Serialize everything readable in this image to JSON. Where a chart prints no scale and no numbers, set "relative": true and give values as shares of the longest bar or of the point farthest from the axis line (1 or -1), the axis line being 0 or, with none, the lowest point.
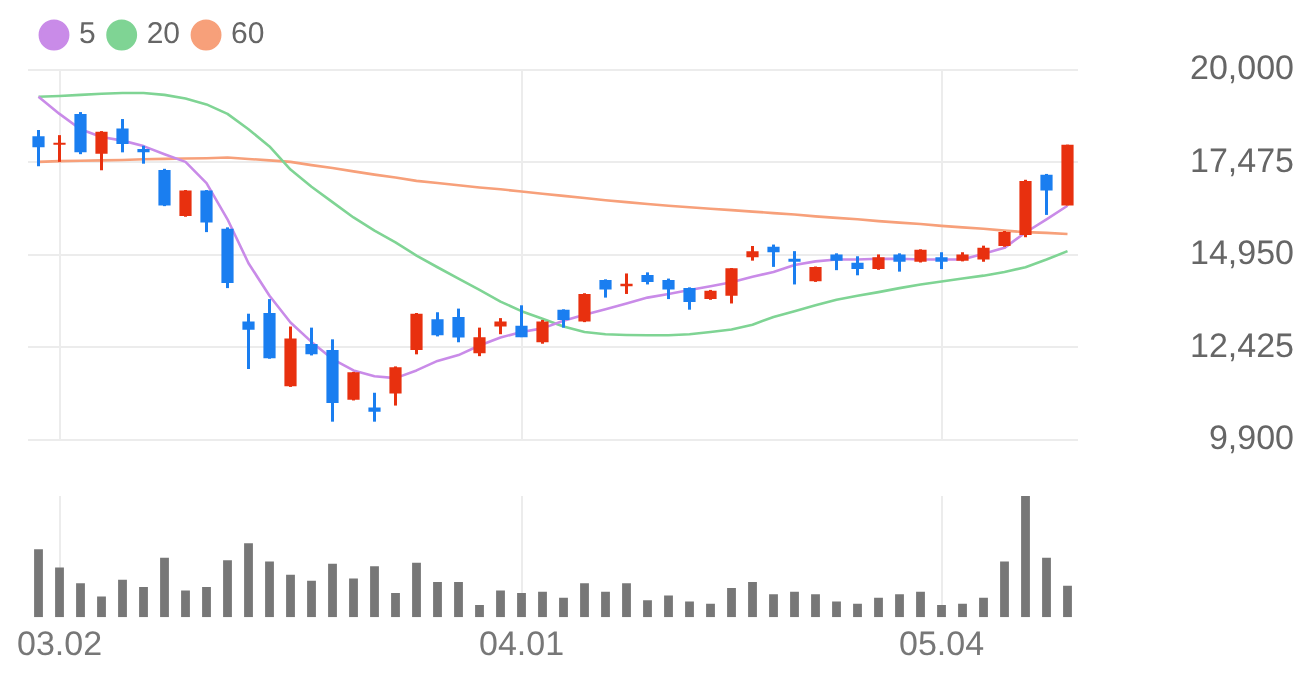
{
  "chart_data": [
    {
      "type": "candlestick",
      "categories": [
        null,
        "03.02",
        null,
        null,
        null,
        null,
        null,
        null,
        null,
        null,
        null,
        null,
        null,
        null,
        null,
        null,
        null,
        null,
        null,
        null,
        null,
        null,
        null,
        "04.01",
        null,
        null,
        null,
        null,
        null,
        null,
        null,
        null,
        null,
        null,
        null,
        null,
        null,
        null,
        null,
        null,
        null,
        null,
        null,
        "05.04",
        null,
        null,
        null,
        null,
        null,
        null
      ],
      "ohlc": [
        [
          18190,
          18360,
          17370,
          17890
        ],
        [
          17960,
          18220,
          17490,
          18010
        ],
        [
          18800,
          18850,
          17700,
          17750
        ],
        [
          17710,
          18330,
          17260,
          18310
        ],
        [
          18400,
          18660,
          17750,
          17980
        ],
        [
          17840,
          17930,
          17440,
          17750
        ],
        [
          17270,
          17300,
          16280,
          16300
        ],
        [
          16010,
          16720,
          15990,
          16710
        ],
        [
          16710,
          16720,
          15570,
          15830
        ],
        [
          15660,
          15700,
          14040,
          14180
        ],
        [
          13130,
          13340,
          11830,
          12900
        ],
        [
          13360,
          13740,
          12110,
          12120
        ],
        [
          11360,
          12990,
          11340,
          12660
        ],
        [
          12510,
          12960,
          12200,
          12230
        ],
        [
          12350,
          12640,
          10390,
          10900
        ],
        [
          10990,
          11750,
          10970,
          11740
        ],
        [
          10780,
          11180,
          10390,
          10660
        ],
        [
          11160,
          11900,
          10830,
          11880
        ],
        [
          12350,
          13360,
          12230,
          13340
        ],
        [
          13190,
          13380,
          12720,
          12750
        ],
        [
          13250,
          13480,
          12560,
          12690
        ],
        [
          12260,
          12960,
          12180,
          12700
        ],
        [
          12990,
          13220,
          12780,
          13130
        ],
        [
          13010,
          13570,
          12700,
          12700
        ],
        [
          12560,
          13170,
          12520,
          13130
        ],
        [
          13450,
          13460,
          12960,
          13170
        ],
        [
          13130,
          13900,
          13110,
          13880
        ],
        [
          14260,
          14280,
          13780,
          14000
        ],
        [
          14090,
          14440,
          13880,
          14160
        ],
        [
          14400,
          14470,
          14140,
          14210
        ],
        [
          14260,
          14300,
          13740,
          14000
        ],
        [
          14040,
          14060,
          13450,
          13660
        ],
        [
          13740,
          13990,
          13720,
          13970
        ],
        [
          13830,
          14590,
          13620,
          14580
        ],
        [
          14880,
          15190,
          14790,
          15050
        ],
        [
          15170,
          15230,
          14620,
          15020
        ],
        [
          14840,
          15050,
          14140,
          14760
        ],
        [
          14230,
          14630,
          14210,
          14620
        ],
        [
          14960,
          14990,
          14530,
          14790
        ],
        [
          14730,
          14910,
          14390,
          14560
        ],
        [
          14560,
          14960,
          14540,
          14880
        ],
        [
          14960,
          14990,
          14490,
          14760
        ],
        [
          14760,
          15100,
          14740,
          15090
        ],
        [
          14880,
          15020,
          14560,
          14760
        ],
        [
          14790,
          15020,
          14770,
          14960
        ],
        [
          14820,
          15200,
          14760,
          15140
        ],
        [
          15190,
          15600,
          15170,
          15570
        ],
        [
          15490,
          17000,
          15430,
          16970
        ],
        [
          17140,
          17160,
          16040,
          16710
        ],
        [
          16300,
          17960,
          16300,
          17960
        ]
      ],
      "colors": [
        "#1a7ef0",
        "#e8300f",
        "#1a7ef0",
        "#e8300f",
        "#1a7ef0",
        "#1a7ef0",
        "#1a7ef0",
        "#e8300f",
        "#1a7ef0",
        "#1a7ef0",
        "#1a7ef0",
        "#1a7ef0",
        "#e8300f",
        "#1a7ef0",
        "#1a7ef0",
        "#e8300f",
        "#1a7ef0",
        "#e8300f",
        "#e8300f",
        "#1a7ef0",
        "#1a7ef0",
        "#e8300f",
        "#e8300f",
        "#1a7ef0",
        "#e8300f",
        "#1a7ef0",
        "#e8300f",
        "#1a7ef0",
        "#e8300f",
        "#1a7ef0",
        "#1a7ef0",
        "#1a7ef0",
        "#e8300f",
        "#e8300f",
        "#e8300f",
        "#1a7ef0",
        "#1a7ef0",
        "#e8300f",
        "#1a7ef0",
        "#1a7ef0",
        "#e8300f",
        "#1a7ef0",
        "#e8300f",
        "#1a7ef0",
        "#e8300f",
        "#e8300f",
        "#e8300f",
        "#e8300f",
        "#1a7ef0",
        "#e8300f"
      ],
      "series": [
        {
          "type": "line",
          "name": "5",
          "color": "#c98be8",
          "values": [
            19270,
            18800,
            18380,
            18170,
            18070,
            17920,
            17700,
            17490,
            16910,
            15920,
            14720,
            13830,
            13100,
            12570,
            12100,
            11790,
            11630,
            11580,
            11790,
            12050,
            12210,
            12470,
            12690,
            12840,
            12940,
            13150,
            13310,
            13460,
            13620,
            13780,
            13880,
            13990,
            14090,
            14200,
            14350,
            14480,
            14670,
            14770,
            14820,
            14820,
            14840,
            14840,
            14820,
            14820,
            14820,
            14980,
            15140,
            15560,
            15920,
            16290
          ]
        },
        {
          "type": "line",
          "name": "20",
          "color": "#7fd494",
          "values": [
            19270,
            19290,
            19320,
            19350,
            19370,
            19370,
            19320,
            19220,
            19060,
            18800,
            18380,
            17910,
            17280,
            16810,
            16390,
            15970,
            15610,
            15290,
            14930,
            14610,
            14300,
            13990,
            13670,
            13410,
            13200,
            12990,
            12840,
            12780,
            12760,
            12750,
            12750,
            12780,
            12840,
            12910,
            13040,
            13250,
            13410,
            13570,
            13720,
            13830,
            13930,
            14040,
            14140,
            14220,
            14300,
            14380,
            14480,
            14610,
            14820,
            15050
          ]
        },
        {
          "type": "line",
          "name": "60",
          "color": "#f7a07a",
          "values": [
            17490,
            17510,
            17520,
            17530,
            17540,
            17560,
            17570,
            17580,
            17590,
            17610,
            17570,
            17530,
            17490,
            17400,
            17320,
            17230,
            17140,
            17060,
            16970,
            16910,
            16850,
            16790,
            16740,
            16680,
            16620,
            16560,
            16500,
            16440,
            16390,
            16340,
            16290,
            16250,
            16210,
            16170,
            16130,
            16090,
            16050,
            16000,
            15960,
            15920,
            15870,
            15830,
            15790,
            15740,
            15700,
            15660,
            15610,
            15570,
            15550,
            15520
          ]
        }
      ],
      "ylim": [
        9900,
        20000
      ],
      "yticks": [
        {
          "value": 9900,
          "label": "9,900"
        },
        {
          "value": 12425,
          "label": "12,425"
        },
        {
          "value": 14950,
          "label": "14,950"
        },
        {
          "value": 17475,
          "label": "17,475"
        },
        {
          "value": 20000,
          "label": "20,000"
        }
      ],
      "grid": true,
      "legend": "top left",
      "tick_labels": "y",
      "marker": "none"
    },
    {
      "type": "bar",
      "categories": [
        null,
        "03.02",
        null,
        null,
        null,
        null,
        null,
        null,
        null,
        null,
        null,
        null,
        null,
        null,
        null,
        null,
        null,
        null,
        null,
        null,
        null,
        null,
        null,
        "04.01",
        null,
        null,
        null,
        null,
        null,
        null,
        null,
        null,
        null,
        null,
        null,
        null,
        null,
        null,
        null,
        null,
        null,
        null,
        null,
        "05.04",
        null,
        null,
        null,
        null,
        null,
        null
      ],
      "values": [
        0.56,
        0.41,
        0.28,
        0.17,
        0.31,
        0.25,
        0.49,
        0.22,
        0.25,
        0.47,
        0.61,
        0.46,
        0.35,
        0.3,
        0.44,
        0.32,
        0.42,
        0.2,
        0.45,
        0.29,
        0.29,
        0.1,
        0.22,
        0.2,
        0.21,
        0.16,
        0.28,
        0.21,
        0.28,
        0.14,
        0.18,
        0.13,
        0.11,
        0.24,
        0.29,
        0.19,
        0.21,
        0.19,
        0.13,
        0.11,
        0.16,
        0.19,
        0.21,
        0.1,
        0.11,
        0.16,
        0.46,
        1,
        0.49,
        0.26
      ],
      "color": "#777777",
      "relative": true,
      "grid": "x",
      "tick_labels": "x"
    }
  ]
}
